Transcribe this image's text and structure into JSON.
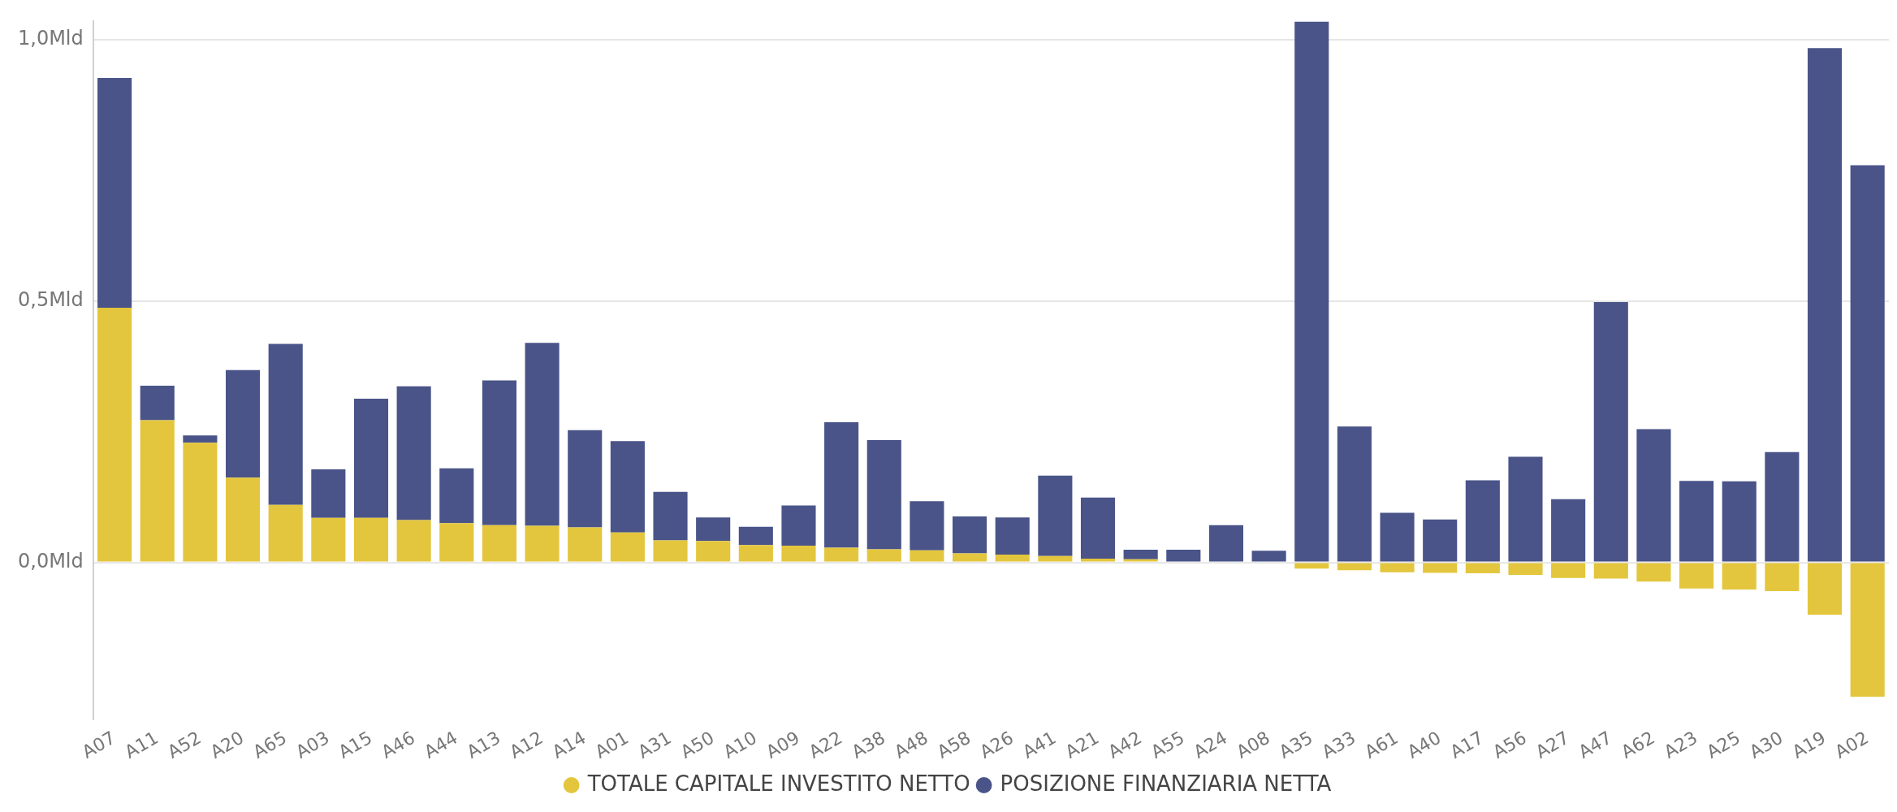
{
  "chart_data": {
    "type": "bar",
    "stacked": true,
    "categories": [
      "A07",
      "A11",
      "A52",
      "A20",
      "A65",
      "A03",
      "A15",
      "A46",
      "A44",
      "A13",
      "A12",
      "A14",
      "A01",
      "A31",
      "A50",
      "A10",
      "A09",
      "A22",
      "A38",
      "A48",
      "A58",
      "A26",
      "A41",
      "A21",
      "A42",
      "A55",
      "A24",
      "A08",
      "A35",
      "A33",
      "A61",
      "A40",
      "A17",
      "A56",
      "A27",
      "A47",
      "A62",
      "A23",
      "A25",
      "A30",
      "A19",
      "A02"
    ],
    "series": [
      {
        "name": "TOTALE CAPITALE INVESTITO NETTO",
        "color": "#e3c63d",
        "values": [
          0.487,
          0.272,
          0.229,
          0.162,
          0.11,
          0.085,
          0.085,
          0.081,
          0.075,
          0.071,
          0.07,
          0.067,
          0.057,
          0.042,
          0.041,
          0.033,
          0.032,
          0.028,
          0.025,
          0.023,
          0.017,
          0.015,
          0.012,
          0.007,
          0.006,
          null,
          null,
          null,
          -0.012,
          -0.015,
          -0.019,
          -0.02,
          -0.021,
          -0.024,
          -0.03,
          -0.031,
          -0.037,
          -0.05,
          -0.052,
          -0.055,
          -0.1,
          -0.257
        ]
      },
      {
        "name": "POSIZIONE FINANZIARIA NETTA",
        "color": "#4a5488",
        "values": [
          0.44,
          0.066,
          0.014,
          0.206,
          0.308,
          0.093,
          0.228,
          0.256,
          0.105,
          0.277,
          0.35,
          0.186,
          0.175,
          0.093,
          0.045,
          0.035,
          0.077,
          0.24,
          0.209,
          0.094,
          0.071,
          0.071,
          0.154,
          0.117,
          0.018,
          0.024,
          0.071,
          0.022,
          1.035,
          0.26,
          0.095,
          0.082,
          0.157,
          0.202,
          0.121,
          0.498,
          0.255,
          0.156,
          0.155,
          0.211,
          0.984,
          0.76
        ]
      }
    ],
    "ylim": [
      -0.3,
      1.035
    ],
    "yticks": [
      {
        "value": 0,
        "label": "0,0Mld"
      },
      {
        "value": 0.5,
        "label": "0,5Mld"
      },
      {
        "value": 1,
        "label": "1,0Mld"
      }
    ],
    "grid": "y",
    "legend": "bottom"
  }
}
